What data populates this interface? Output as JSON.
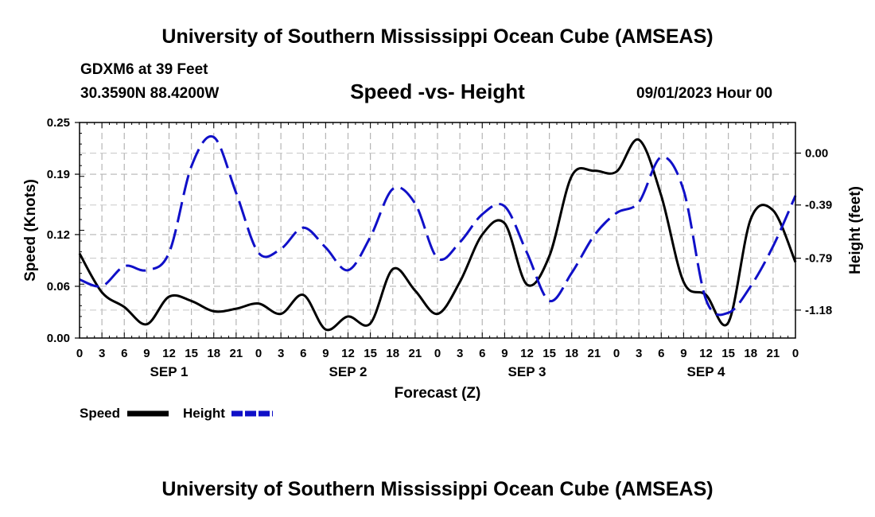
{
  "header": {
    "title": "University of Southern Mississippi Ocean Cube (AMSEAS)",
    "station": "GDXM6 at 39 Feet",
    "coords": "30.3590N  88.4200W",
    "subtitle": "Speed -vs- Height",
    "date": "09/01/2023 Hour 00"
  },
  "footer": {
    "title": "University of Southern Mississippi Ocean Cube (AMSEAS)"
  },
  "chart_data": {
    "type": "line",
    "title": "Speed -vs- Height",
    "xlabel": "Forecast (Z)",
    "ylabel": "Speed (Knots)",
    "y2label": "Height (feet)",
    "x_unit": "hours since 09/01/2023 00Z",
    "xlim": [
      0,
      96
    ],
    "ylim": [
      0,
      0.25
    ],
    "y2lim": [
      -1.39,
      0.23
    ],
    "x_ticks": [
      0,
      3,
      6,
      9,
      12,
      15,
      18,
      21,
      24,
      27,
      30,
      33,
      36,
      39,
      42,
      45,
      48,
      51,
      54,
      57,
      60,
      63,
      66,
      69,
      72,
      75,
      78,
      81,
      84,
      87,
      90,
      93,
      96
    ],
    "x_tick_labels": [
      "0",
      "3",
      "6",
      "9",
      "12",
      "15",
      "18",
      "21",
      "0",
      "3",
      "6",
      "9",
      "12",
      "15",
      "18",
      "21",
      "0",
      "3",
      "6",
      "9",
      "12",
      "15",
      "18",
      "21",
      "0",
      "3",
      "6",
      "9",
      "12",
      "15",
      "18",
      "21",
      "0"
    ],
    "day_labels": [
      {
        "x": 12,
        "label": "SEP 1"
      },
      {
        "x": 36,
        "label": "SEP 2"
      },
      {
        "x": 60,
        "label": "SEP 3"
      },
      {
        "x": 84,
        "label": "SEP 4"
      }
    ],
    "y_ticks": [
      0,
      0.06,
      0.12,
      0.19,
      0.25
    ],
    "y_tick_labels": [
      "0.00",
      "0.06",
      "0.12",
      "0.19",
      "0.25"
    ],
    "y2_ticks": [
      0.0,
      -0.39,
      -0.79,
      -1.18
    ],
    "y2_tick_labels": [
      "0.00",
      "-0.39",
      "-0.79",
      "-1.18"
    ],
    "grid": true,
    "legend": [
      {
        "name": "Speed",
        "color": "#000000",
        "style": "solid"
      },
      {
        "name": "Height",
        "color": "#1010c8",
        "style": "dashed"
      }
    ],
    "series": [
      {
        "name": "Speed",
        "axis": "left",
        "color": "#000000",
        "dash": "solid",
        "points": [
          [
            0,
            0.098
          ],
          [
            3,
            0.053
          ],
          [
            6,
            0.036
          ],
          [
            9,
            0.016
          ],
          [
            12,
            0.048
          ],
          [
            15,
            0.043
          ],
          [
            18,
            0.031
          ],
          [
            21,
            0.034
          ],
          [
            24,
            0.04
          ],
          [
            27,
            0.028
          ],
          [
            30,
            0.05
          ],
          [
            33,
            0.01
          ],
          [
            36,
            0.025
          ],
          [
            39,
            0.017
          ],
          [
            42,
            0.08
          ],
          [
            45,
            0.055
          ],
          [
            48,
            0.028
          ],
          [
            51,
            0.065
          ],
          [
            54,
            0.12
          ],
          [
            57,
            0.133
          ],
          [
            60,
            0.062
          ],
          [
            63,
            0.095
          ],
          [
            66,
            0.188
          ],
          [
            69,
            0.194
          ],
          [
            72,
            0.193
          ],
          [
            75,
            0.23
          ],
          [
            78,
            0.165
          ],
          [
            81,
            0.065
          ],
          [
            84,
            0.05
          ],
          [
            87,
            0.018
          ],
          [
            90,
            0.138
          ],
          [
            93,
            0.148
          ],
          [
            96,
            0.088
          ]
        ]
      },
      {
        "name": "Height",
        "axis": "right",
        "color": "#1010c8",
        "dash": "dashed",
        "points": [
          [
            0,
            -0.95
          ],
          [
            3,
            -1.0
          ],
          [
            6,
            -0.85
          ],
          [
            9,
            -0.88
          ],
          [
            12,
            -0.75
          ],
          [
            15,
            -0.1
          ],
          [
            18,
            0.12
          ],
          [
            21,
            -0.3
          ],
          [
            24,
            -0.75
          ],
          [
            27,
            -0.72
          ],
          [
            30,
            -0.56
          ],
          [
            33,
            -0.71
          ],
          [
            36,
            -0.88
          ],
          [
            39,
            -0.63
          ],
          [
            42,
            -0.27
          ],
          [
            45,
            -0.38
          ],
          [
            48,
            -0.79
          ],
          [
            51,
            -0.67
          ],
          [
            54,
            -0.46
          ],
          [
            57,
            -0.4
          ],
          [
            60,
            -0.75
          ],
          [
            63,
            -1.11
          ],
          [
            66,
            -0.9
          ],
          [
            69,
            -0.62
          ],
          [
            72,
            -0.45
          ],
          [
            75,
            -0.37
          ],
          [
            78,
            -0.03
          ],
          [
            81,
            -0.28
          ],
          [
            84,
            -1.1
          ],
          [
            87,
            -1.2
          ],
          [
            90,
            -1.0
          ],
          [
            93,
            -0.7
          ],
          [
            96,
            -0.32
          ]
        ]
      }
    ]
  }
}
